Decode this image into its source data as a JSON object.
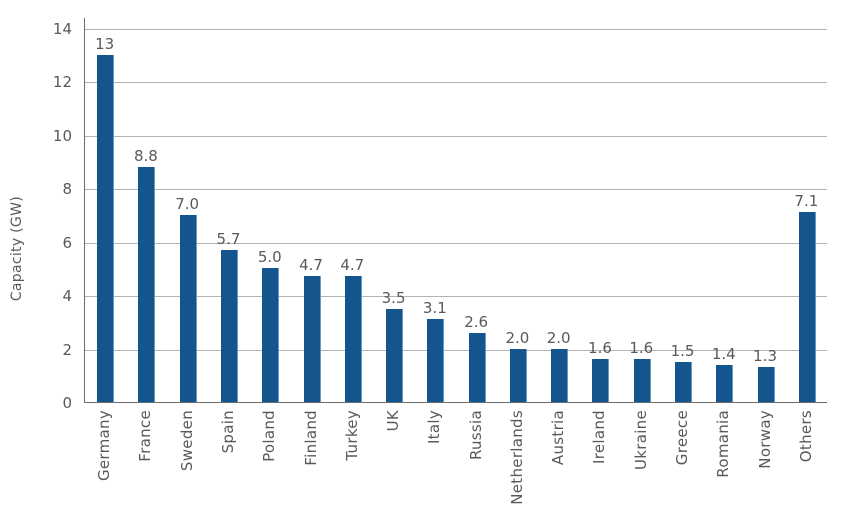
{
  "chart_data": {
    "type": "bar",
    "title": "",
    "xlabel": "",
    "ylabel": "Capacity (GW)",
    "categories": [
      "Germany",
      "France",
      "Sweden",
      "Spain",
      "Poland",
      "Finland",
      "Turkey",
      "UK",
      "Italy",
      "Russia",
      "Netherlands",
      "Austria",
      "Ireland",
      "Ukraine",
      "Greece",
      "Romania",
      "Norway",
      "Others"
    ],
    "values": [
      13,
      8.8,
      7.0,
      5.7,
      5.0,
      4.7,
      4.7,
      3.5,
      3.1,
      2.6,
      2.0,
      2.0,
      1.6,
      1.6,
      1.5,
      1.4,
      1.3,
      7.1
    ],
    "value_labels": [
      "13",
      "8.8",
      "7.0",
      "5.7",
      "5.0",
      "4.7",
      "4.7",
      "3.5",
      "3.1",
      "2.6",
      "2.0",
      "2.0",
      "1.6",
      "1.6",
      "1.5",
      "1.4",
      "1.3",
      "7.1"
    ],
    "ylim": [
      0,
      14
    ],
    "yticks": [
      0,
      2,
      4,
      6,
      8,
      10,
      12,
      14
    ],
    "grid": "horizontal",
    "legend": "none",
    "colors": {
      "bar": "#15558d",
      "bar_edge": "#6699c5",
      "gridline": "#b3b3b3",
      "axis": "#6b6b6b",
      "text": "#595959",
      "background": "#ffffff"
    }
  }
}
